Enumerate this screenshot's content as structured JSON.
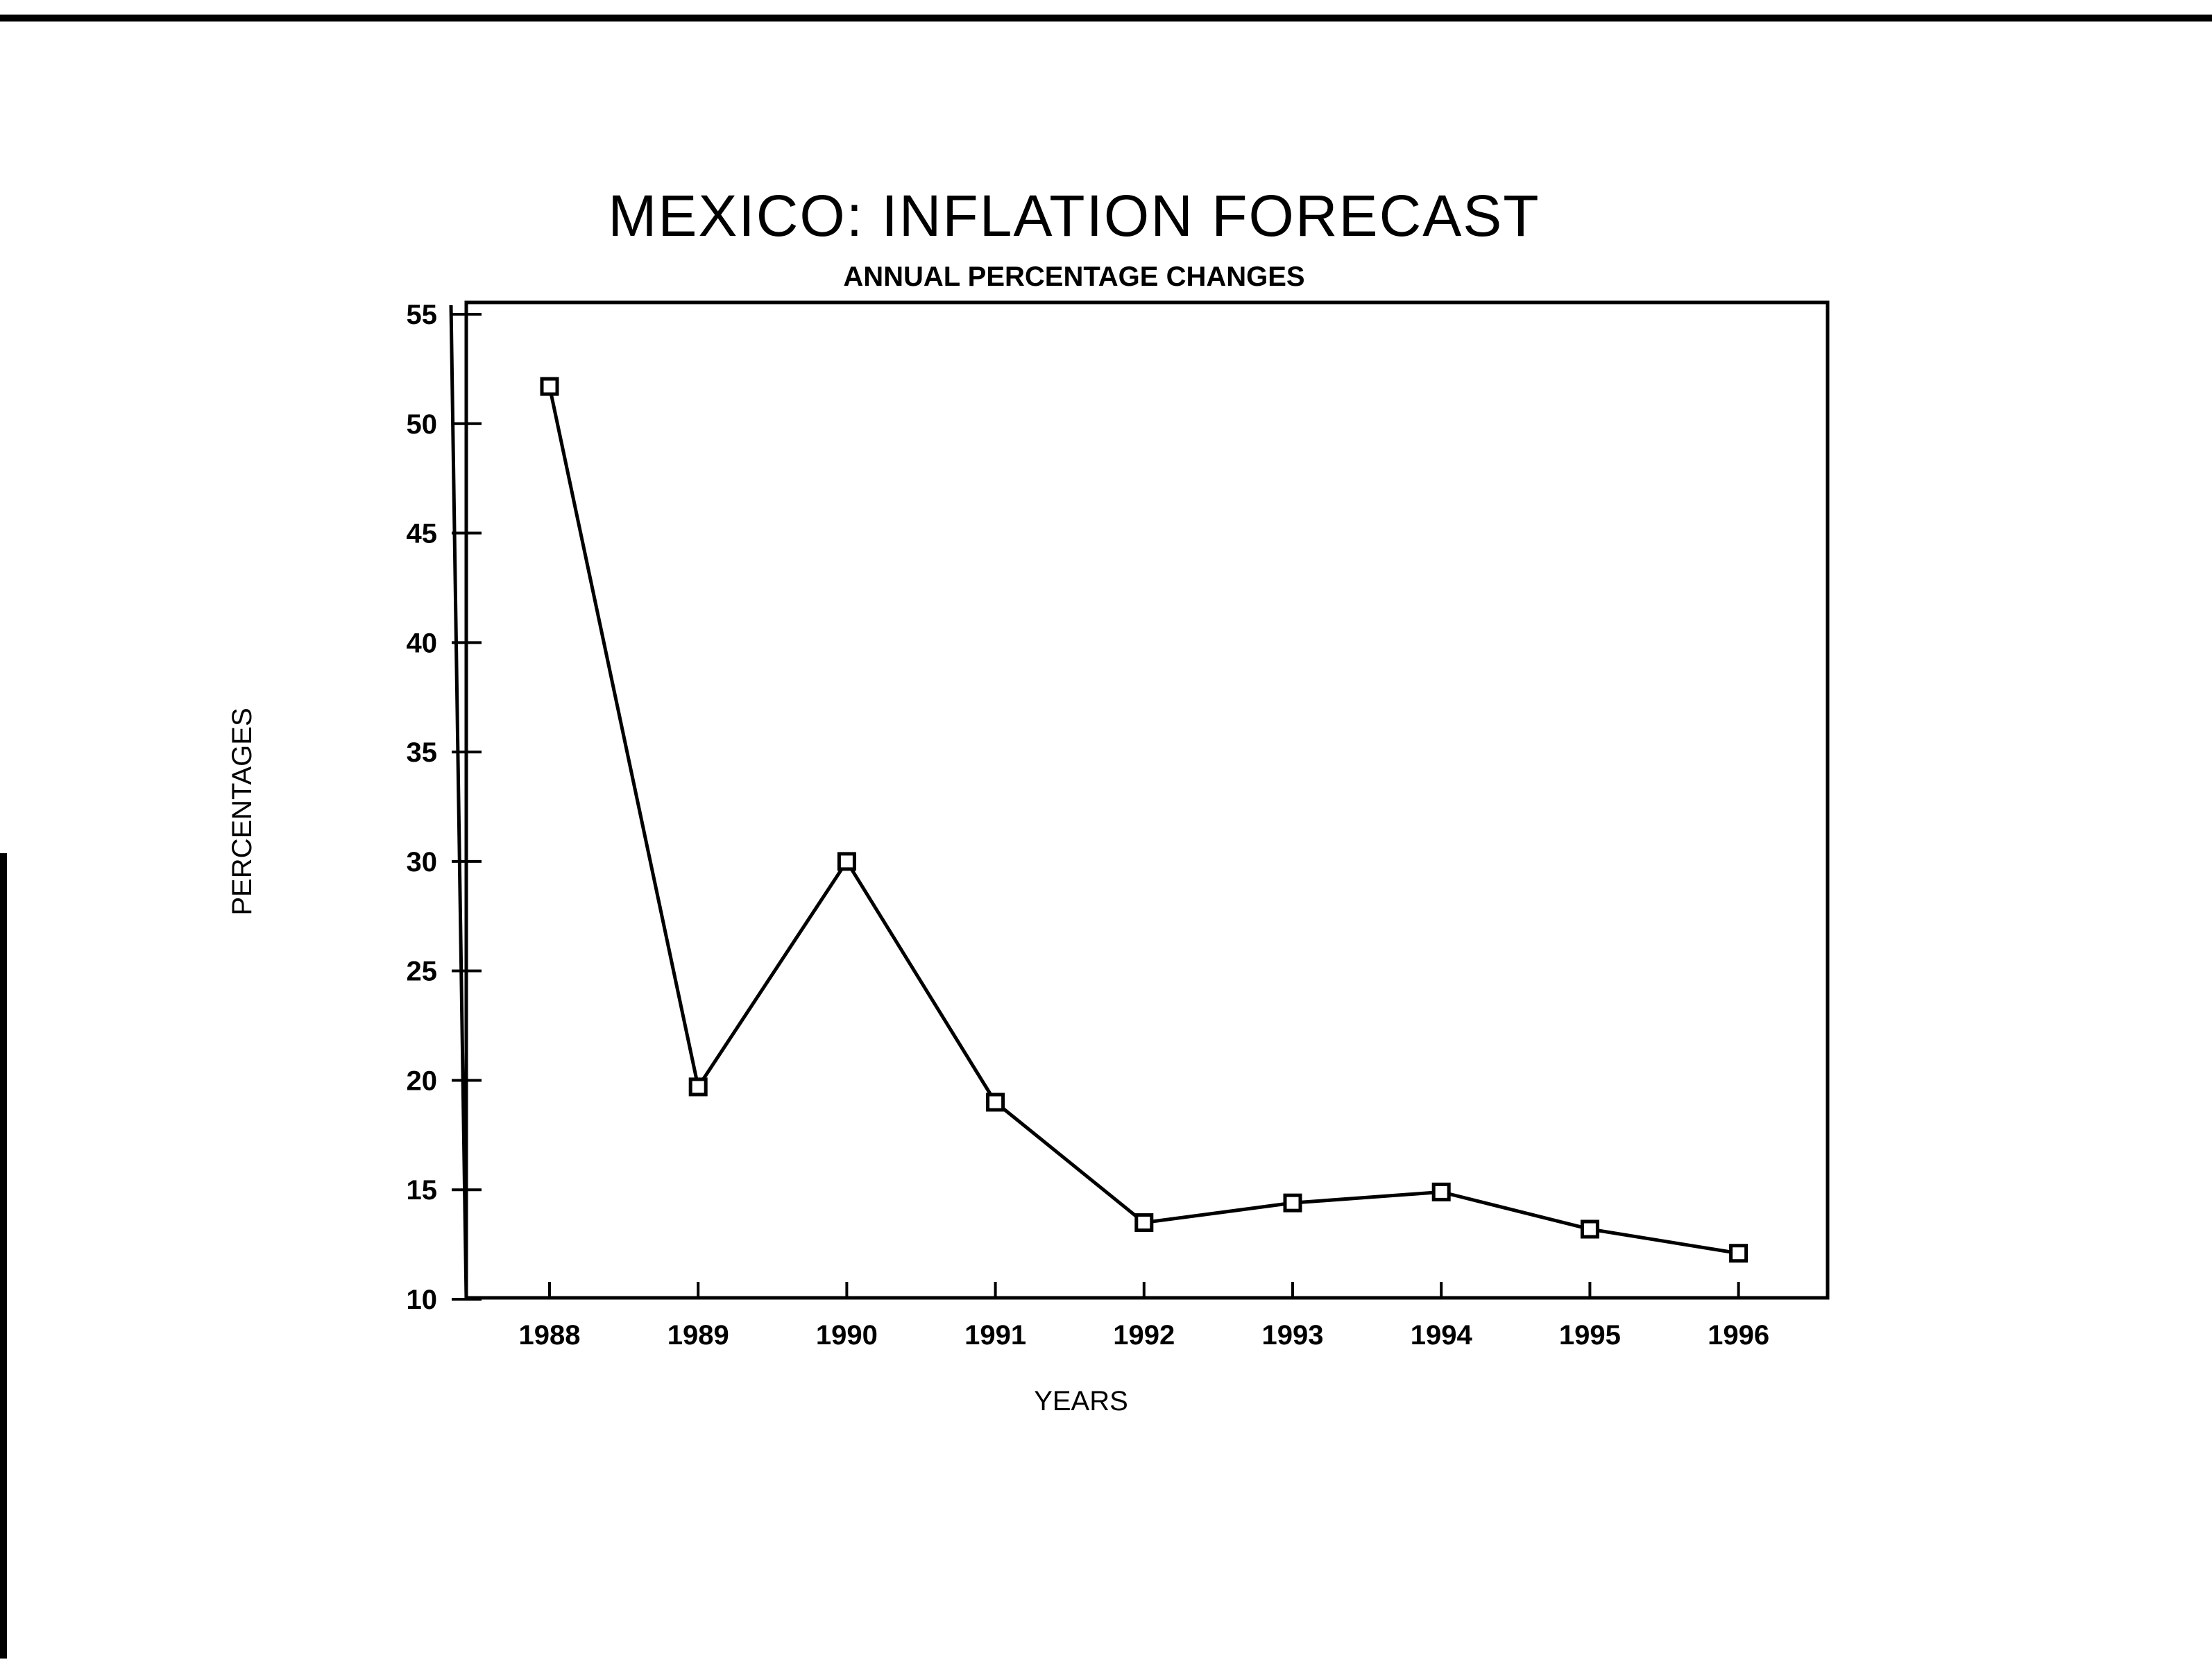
{
  "chart_data": {
    "type": "line",
    "title": "MEXICO: INFLATION FORECAST",
    "subtitle": "ANNUAL PERCENTAGE CHANGES",
    "xlabel": "YEARS",
    "ylabel": "PERCENTAGES",
    "categories": [
      "1988",
      "1989",
      "1990",
      "1991",
      "1992",
      "1993",
      "1994",
      "1995",
      "1996"
    ],
    "series": [
      {
        "values": [
          51.7,
          19.7,
          30.0,
          19.0,
          13.5,
          14.4,
          14.9,
          13.2,
          12.1
        ],
        "marker": "square-open",
        "color": "#000000"
      }
    ],
    "ylim": [
      10,
      55
    ],
    "yticks": [
      "55",
      "50",
      "45",
      "40",
      "35",
      "30",
      "25",
      "20",
      "15",
      "10"
    ],
    "grid": false,
    "legend": "none"
  }
}
